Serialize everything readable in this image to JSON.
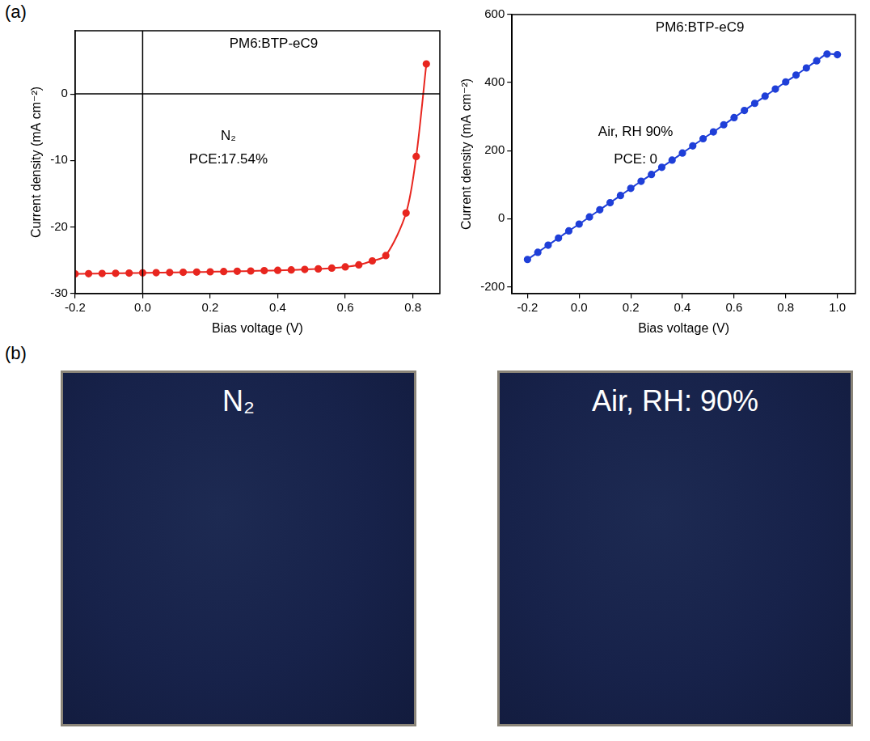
{
  "panels": [
    "(a)",
    "(b)"
  ],
  "chart_data": [
    {
      "type": "line",
      "title": "PM6:BTP-eC9",
      "annotations": [
        "N₂",
        "PCE:17.54%"
      ],
      "xlabel": "Bias voltage (V)",
      "ylabel": "Current density (mA cm⁻²)",
      "x": [
        -0.2,
        -0.16,
        -0.12,
        -0.08,
        -0.04,
        0,
        0.04,
        0.08,
        0.12,
        0.16,
        0.2,
        0.24,
        0.28,
        0.32,
        0.36,
        0.4,
        0.44,
        0.48,
        0.52,
        0.56,
        0.6,
        0.64,
        0.68,
        0.72,
        0.78,
        0.81,
        0.84
      ],
      "values": [
        -27.05,
        -27.02,
        -26.99,
        -26.96,
        -26.93,
        -26.9,
        -26.87,
        -26.84,
        -26.81,
        -26.78,
        -26.74,
        -26.7,
        -26.66,
        -26.62,
        -26.57,
        -26.52,
        -26.46,
        -26.39,
        -26.3,
        -26.18,
        -26.0,
        -25.7,
        -25.1,
        -24.3,
        -17.9,
        -9.4,
        4.5
      ],
      "color": "#e8261f",
      "marker": "circle",
      "line_style": "solid",
      "xlim": [
        -0.2,
        0.88
      ],
      "xticks": [
        -0.2,
        {
          "value": 0,
          "label": "0.0"
        },
        0.2,
        0.4,
        0.6,
        0.8
      ],
      "ylim": [
        -30,
        9.5
      ],
      "yticks": [
        -30,
        -20,
        -10,
        0
      ],
      "reference_lines": {
        "x": [
          0
        ],
        "y": [
          0
        ]
      },
      "grid": false
    },
    {
      "type": "line",
      "title": "PM6:BTP-eC9",
      "annotations": [
        "Air, RH 90%",
        "PCE: 0"
      ],
      "xlabel": "Bias voltage (V)",
      "ylabel": "Current density (mA cm⁻²)",
      "x": [
        -0.2,
        -0.16,
        -0.12,
        -0.08,
        -0.04,
        0,
        0.04,
        0.08,
        0.12,
        0.16,
        0.2,
        0.24,
        0.28,
        0.32,
        0.36,
        0.4,
        0.44,
        0.48,
        0.52,
        0.56,
        0.6,
        0.64,
        0.68,
        0.72,
        0.76,
        0.8,
        0.84,
        0.88,
        0.92,
        0.96,
        1.0
      ],
      "values": [
        -120,
        -99,
        -78,
        -57,
        -36,
        -16,
        5,
        26,
        47,
        68,
        89,
        110,
        130,
        151,
        172,
        193,
        214,
        235,
        255,
        276,
        297,
        318,
        339,
        360,
        381,
        402,
        422,
        443,
        464,
        484,
        482
      ],
      "color": "#1f3fd8",
      "marker": "circle",
      "line_style": "solid",
      "xlim": [
        -0.26,
        1.07
      ],
      "xticks": [
        -0.2,
        {
          "value": 0,
          "label": "0.0"
        },
        0.2,
        0.4,
        0.6,
        0.8,
        {
          "value": 1,
          "label": "1.0"
        }
      ],
      "ylim": [
        -220,
        600
      ],
      "yticks": [
        -200,
        0,
        200,
        400,
        600
      ],
      "grid": false
    }
  ],
  "photos": [
    {
      "label": "N₂"
    },
    {
      "label": "Air, RH: 90%"
    }
  ]
}
